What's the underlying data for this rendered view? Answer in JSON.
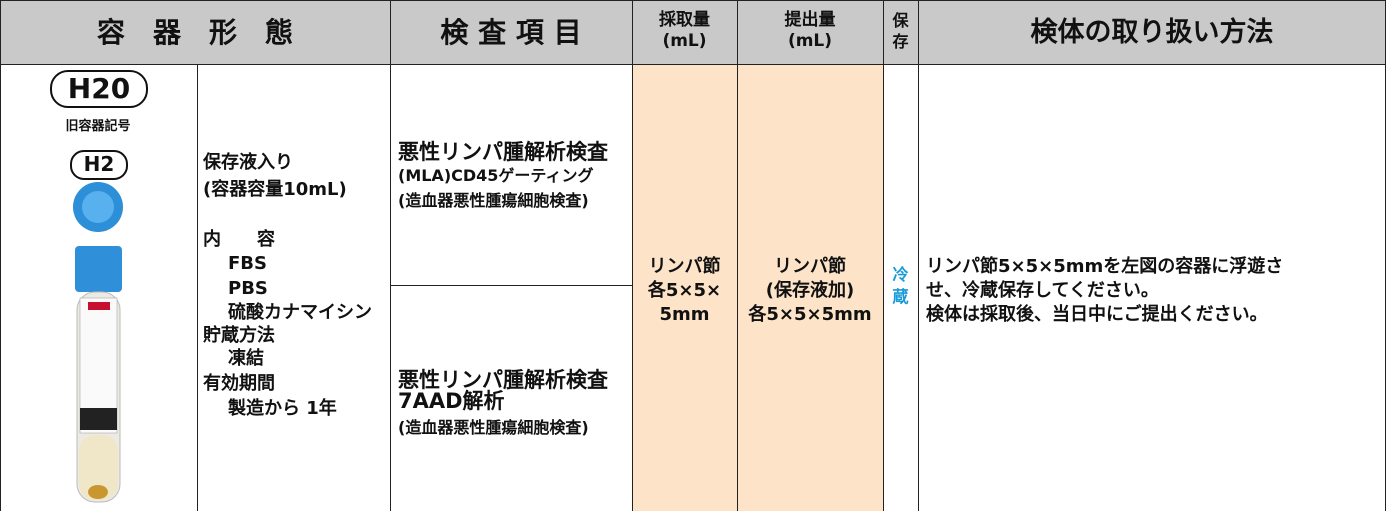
{
  "header": {
    "container_form": "容　器　形　態",
    "test_items": "検 査 項 目",
    "collection_volume": [
      "採取量",
      "(mL)"
    ],
    "submission_volume": [
      "提出量",
      "(mL)"
    ],
    "storage": [
      "保",
      "存"
    ],
    "handling": "検体の取り扱い方法"
  },
  "container": {
    "code": "H20",
    "old_code_label": "旧容器記号",
    "old_code": "H2",
    "description": [
      "保存液入り",
      "(容器容量10mL)",
      "内　　容",
      "FBS",
      "PBS",
      "硫酸カナマイシン",
      "貯蔵方法",
      "凍結",
      "有効期間",
      "製造から 1年"
    ]
  },
  "tests": [
    [
      "悪性リンパ腫解析検査",
      "(MLA)CD45ゲーティング",
      "(造血器悪性腫瘍細胞検査)"
    ],
    [
      "悪性リンパ腫解析検査",
      "7AAD解析",
      "(造血器悪性腫瘍細胞検査)"
    ]
  ],
  "collection_volume": [
    "リンパ節",
    "各5×5×",
    "5mm"
  ],
  "submission_volume": [
    "リンパ節",
    "(保存液加)",
    "各5×5×5mm"
  ],
  "storage": [
    "冷",
    "蔵"
  ],
  "handling": [
    "リンパ節5×5×5mmを左図の容器に浮遊さ",
    "せ、冷蔵保存してください。",
    "検体は採取後、当日中にご提出ください。"
  ]
}
